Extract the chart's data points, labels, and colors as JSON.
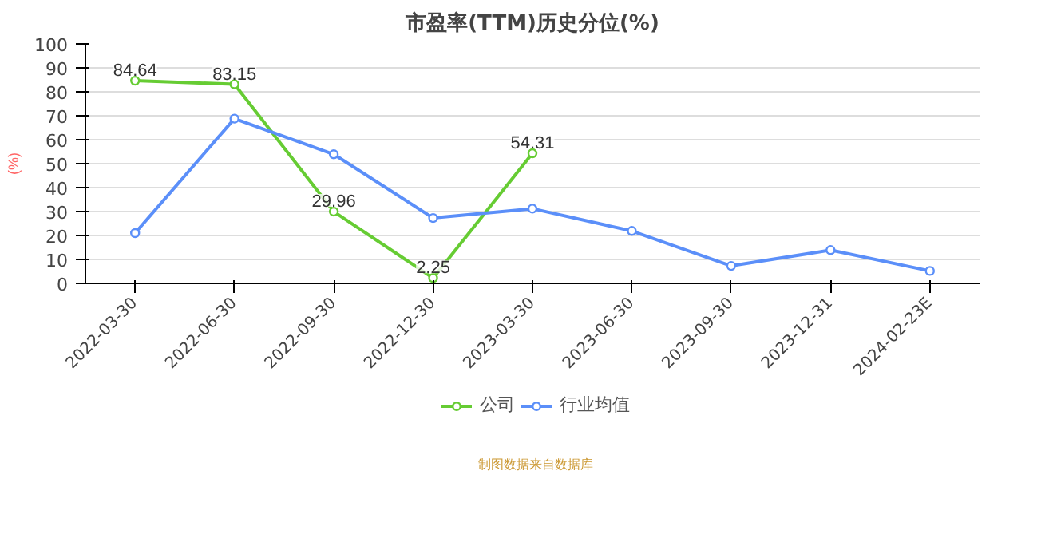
{
  "chart_data": {
    "type": "line",
    "title": "市盈率(TTM)历史分位(%)",
    "ylabel": "(%)",
    "categories": [
      "2022-03-30",
      "2022-06-30",
      "2022-09-30",
      "2022-12-30",
      "2023-03-30",
      "2023-06-30",
      "2023-09-30",
      "2023-12-31",
      "2024-02-23E"
    ],
    "series": [
      {
        "name": "公司",
        "color": "#66cc33",
        "values": [
          84.64,
          83.15,
          29.96,
          2.25,
          54.31,
          null,
          null,
          null,
          null
        ],
        "value_labels": [
          "84.64",
          "83.15",
          "29.96",
          "2.25",
          "54.31",
          null,
          null,
          null,
          null
        ]
      },
      {
        "name": "行业均值",
        "color": "#5b8ff9",
        "values": [
          21.0,
          68.8,
          53.9,
          27.3,
          31.2,
          21.9,
          7.3,
          13.9,
          5.2
        ]
      }
    ],
    "ylim": [
      0,
      100
    ],
    "yticks": [
      0,
      10,
      20,
      30,
      40,
      50,
      60,
      70,
      80,
      90,
      100
    ],
    "grid": "y",
    "legend": "bottom",
    "marker": "circle",
    "line_style": "solid",
    "annotations": [
      "制图数据来自数据库"
    ]
  }
}
